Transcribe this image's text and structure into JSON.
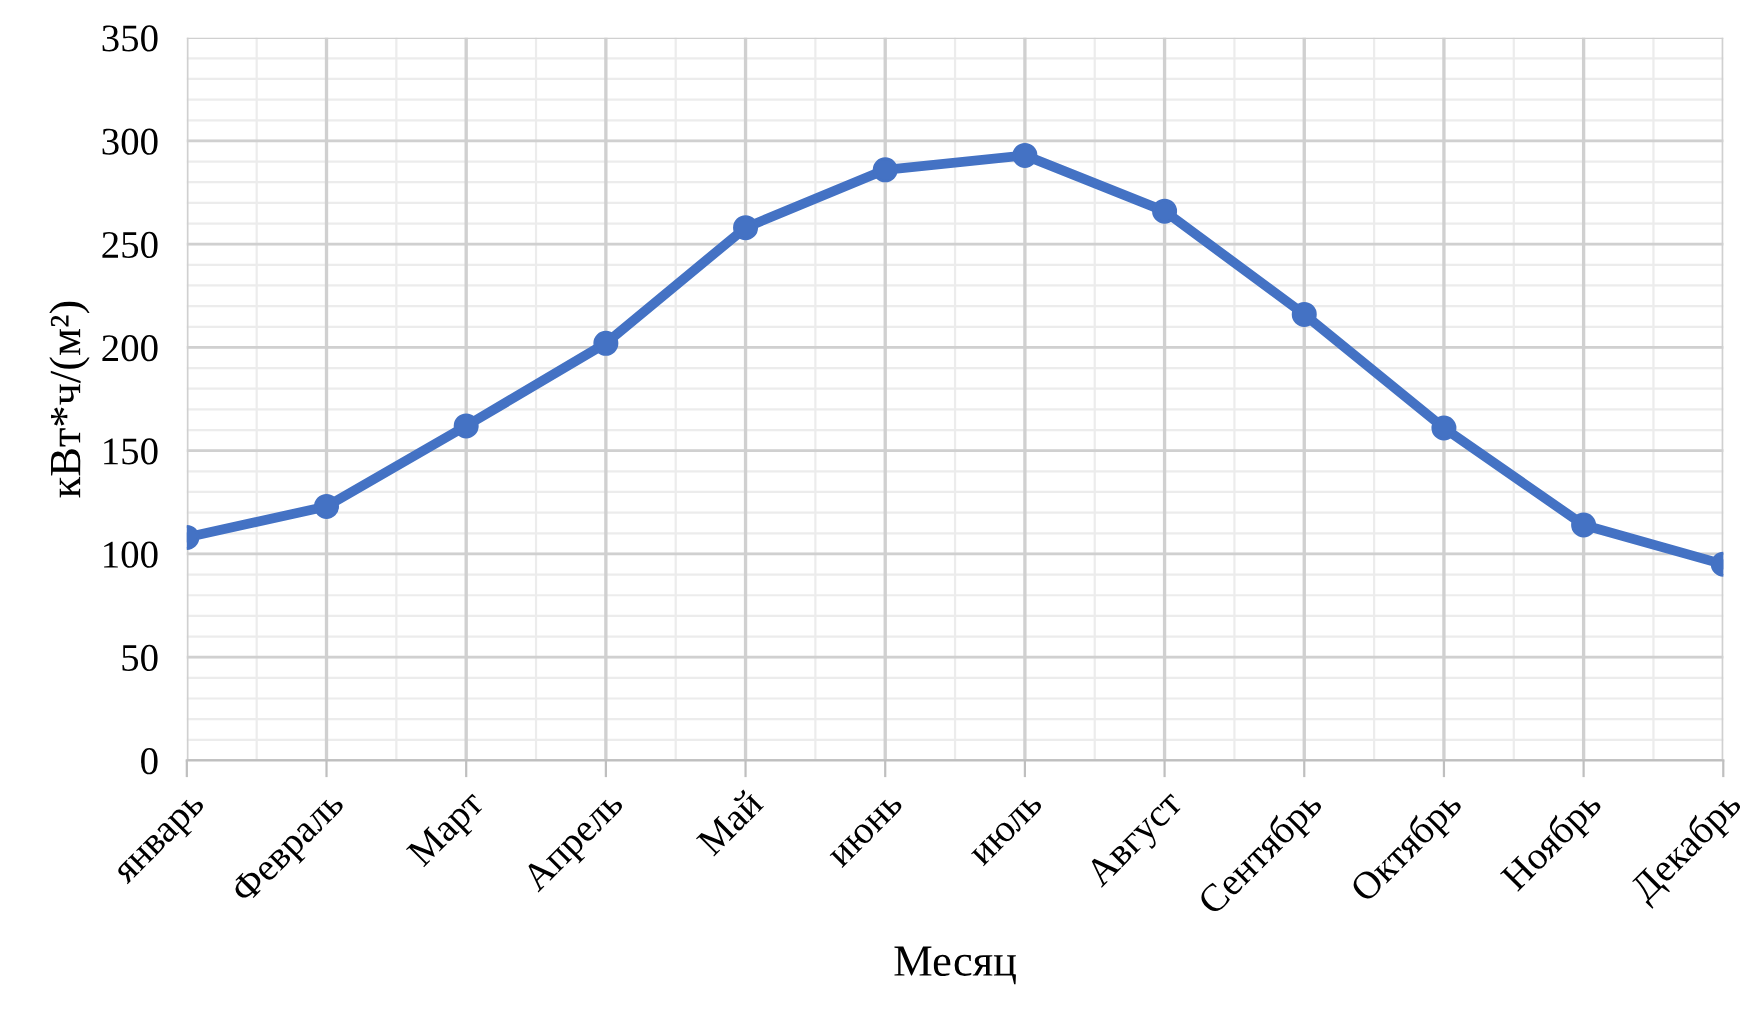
{
  "chart_data": {
    "type": "line",
    "xlabel": "Месяц",
    "ylabel": "кВт*ч/(м²)",
    "categories": [
      "январь",
      "Февраль",
      "Март",
      "Апрель",
      "Май",
      "июнь",
      "июль",
      "Август",
      "Сентябрь",
      "Октябрь",
      "Ноябрь",
      "Декабрь"
    ],
    "series": [
      {
        "color": "#4472c4",
        "values": [
          108,
          123,
          162,
          202,
          258,
          286,
          293,
          266,
          216,
          161,
          114,
          95
        ]
      }
    ],
    "ylim": [
      0,
      350
    ],
    "yticks": [
      0,
      50,
      100,
      150,
      200,
      250,
      300,
      350
    ],
    "grid": true,
    "marker": "circle",
    "line_style": "solid",
    "legend": false
  }
}
